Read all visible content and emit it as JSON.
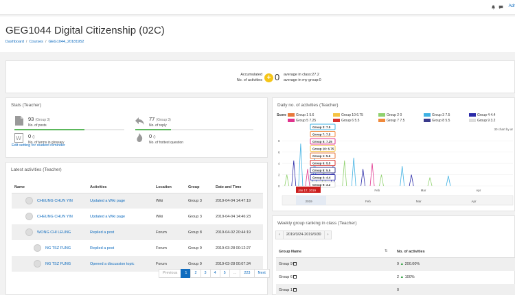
{
  "topbar": {
    "user_label": "Adr"
  },
  "page": {
    "title": "GEG1044 Digital Citizenship (02C)",
    "breadcrumb": [
      "Dashboard",
      "Courses",
      "GEG1044_20181952"
    ]
  },
  "accumulated": {
    "label1": "Accumulated",
    "label2": "No. of activities",
    "count": "0",
    "avg_class": "average in class:27.2",
    "avg_group": "average in my group:0"
  },
  "stats": {
    "title": "Stats (Teacher)",
    "posts": {
      "value": "93",
      "group": "(Group 3)",
      "caption": "No. of posts",
      "progress": 0.64
    },
    "reply": {
      "value": "77",
      "group": "(Group 3)",
      "caption": "No. of reply",
      "progress": 0.3
    },
    "glossary": {
      "value": "0",
      "group": "()",
      "caption": "No. of terms in glossary",
      "progress": 0
    },
    "question": {
      "value": "0",
      "group": "()",
      "caption": "No. of hottest question",
      "progress": 0
    },
    "reminder_link": "Edit setting for student reminder"
  },
  "latest": {
    "title": "Latest activities (Teacher)",
    "headers": [
      "Name",
      "Activities",
      "Location",
      "Group",
      "Date and Time"
    ],
    "rows": [
      {
        "name": "CHEUNG CHUN YIN",
        "activity": "Updated a Wiki page",
        "location": "Wiki",
        "group": "Group 3",
        "time": "2019-04-04 14:47:19"
      },
      {
        "name": "CHEUNG CHUN YIN",
        "activity": "Updated a Wiki page",
        "location": "Wiki",
        "group": "Group 3",
        "time": "2019-04-04 14:46:23"
      },
      {
        "name": "WONG CHI LEUNG",
        "activity": "Replied a post",
        "location": "Forum",
        "group": "Group 8",
        "time": "2019-04-02 20:44:19"
      },
      {
        "name": "NG TSZ FUNG",
        "activity": "Replied a post",
        "location": "Forum",
        "group": "Group 9",
        "time": "2019-03-28 00:12:27"
      },
      {
        "name": "NG TSZ FUNG",
        "activity": "Opened a discussion topic",
        "location": "Forum",
        "group": "Group 9",
        "time": "2019-03-28 00:07:34"
      }
    ],
    "pager": [
      "Previous",
      "1",
      "2",
      "3",
      "4",
      "5",
      "...",
      "223",
      "Next"
    ]
  },
  "daily": {
    "title": "Daily no. of activities (Teacher)",
    "note": "30 chart by ar"
  },
  "chart_data": {
    "type": "line",
    "title": "Daily no. of activities (Teacher)",
    "legend_title": "Score",
    "series": [
      {
        "name": "Group 1",
        "score": "5.6",
        "color": "#e8783c"
      },
      {
        "name": "Group 10",
        "score": "6.75",
        "color": "#f5c242"
      },
      {
        "name": "Group 2",
        "score": "0",
        "color": "#8fd16d"
      },
      {
        "name": "Group 3",
        "score": "7.5",
        "color": "#3fb1e3"
      },
      {
        "name": "Group 4",
        "score": "4.4",
        "color": "#2a2aa8"
      },
      {
        "name": "Group 5",
        "score": "7.25",
        "color": "#e0338d"
      },
      {
        "name": "Group 6",
        "score": "5.5",
        "color": "#d9332e"
      },
      {
        "name": "Group 7",
        "score": "7.5",
        "color": "#f08a3c"
      },
      {
        "name": "Group 8",
        "score": "5.5",
        "color": "#3a3a8c"
      },
      {
        "name": "Group 9",
        "score": "3.2",
        "color": "#dddddd"
      }
    ],
    "yticks": [
      "0",
      "2",
      "4",
      "6",
      "8"
    ],
    "ylim": [
      0,
      9
    ],
    "xticks": [
      "Feb",
      "Mar",
      "Apr"
    ],
    "navigator_ticks": [
      "2019",
      "Feb",
      "Mar",
      "Apr"
    ],
    "tooltip_date": "Jan 17, 2019",
    "tooltip": [
      "Group 3: 7.5",
      "Group 7: 7.5",
      "Group 5: 7.25",
      "Group 10: 6.75",
      "Group 1: 5.6",
      "Group 6: 5.5",
      "Group 8: 5.5",
      "Group 4: 4.4",
      "Group 9: 3.2"
    ],
    "peaks": [
      {
        "x": 0.02,
        "y": 2.0,
        "color": "#8fd16d"
      },
      {
        "x": 0.05,
        "y": 4.5,
        "color": "#2a2aa8"
      },
      {
        "x": 0.08,
        "y": 7.5,
        "color": "#3fb1e3"
      },
      {
        "x": 0.11,
        "y": 3.0,
        "color": "#e0338d"
      },
      {
        "x": 0.14,
        "y": 5.0,
        "color": "#3fb1e3"
      },
      {
        "x": 0.18,
        "y": 2.5,
        "color": "#8fd16d"
      },
      {
        "x": 0.22,
        "y": 3.5,
        "color": "#2a2aa8"
      },
      {
        "x": 0.27,
        "y": 4.5,
        "color": "#8fd16d"
      },
      {
        "x": 0.31,
        "y": 5.0,
        "color": "#3fb1e3"
      },
      {
        "x": 0.35,
        "y": 3.0,
        "color": "#2a2aa8"
      },
      {
        "x": 0.39,
        "y": 4.0,
        "color": "#e0338d"
      },
      {
        "x": 0.43,
        "y": 2.0,
        "color": "#8fd16d"
      },
      {
        "x": 0.52,
        "y": 3.5,
        "color": "#3fb1e3"
      },
      {
        "x": 0.56,
        "y": 2.0,
        "color": "#2a2aa8"
      },
      {
        "x": 0.64,
        "y": 1.5,
        "color": "#8fd16d"
      },
      {
        "x": 0.72,
        "y": 1.8,
        "color": "#3fb1e3"
      }
    ]
  },
  "weekly": {
    "title": "Weekly group ranking in class (Teacher)",
    "range": "2019/3/24-2019/3/30",
    "prev": "‹",
    "next": "›",
    "headers": [
      "Group Name",
      "No. of activities"
    ],
    "rows": [
      {
        "group": "Group 9",
        "count": "9",
        "change": "200.00%"
      },
      {
        "group": "Group 6",
        "count": "2",
        "change": "100%"
      },
      {
        "group": "Group 1",
        "count": "0",
        "change": ""
      }
    ]
  }
}
